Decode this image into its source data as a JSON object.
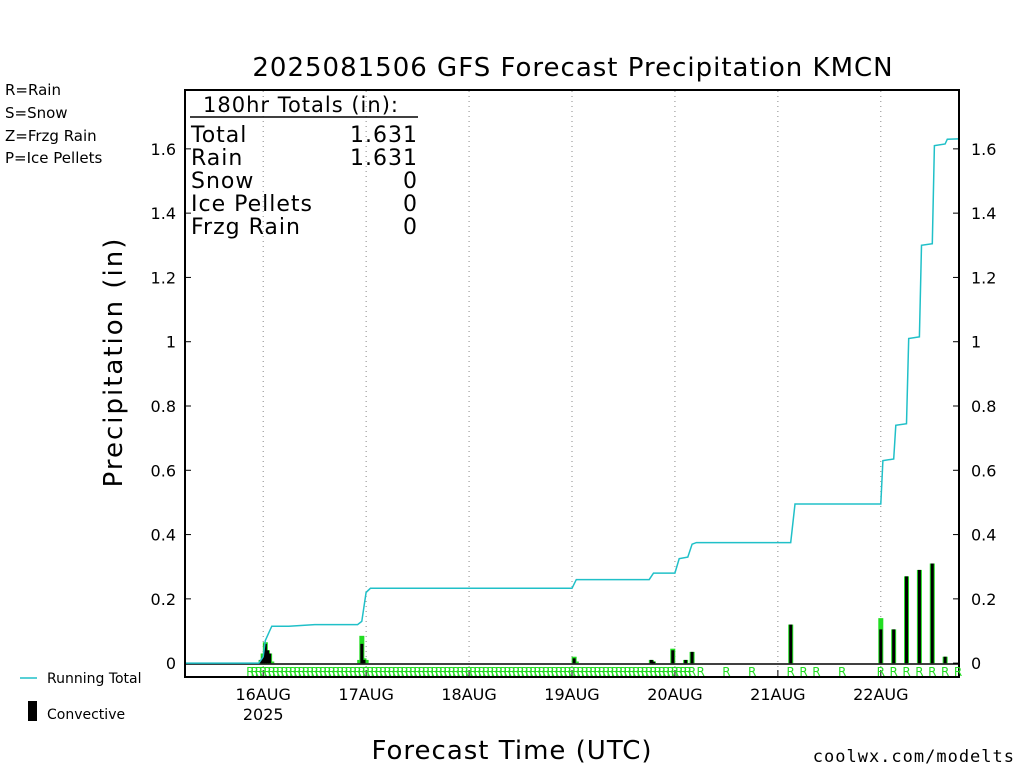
{
  "title": "2025081506 GFS Forecast Precipitation KMCN",
  "ylabel": "Precipitation (in)",
  "xlabel": "Forecast Time (UTC)",
  "source": "coolwx.com/modelts",
  "colors": {
    "running_total": "#20c0c8",
    "rain": "#22dd22",
    "snow": "#3050e0",
    "freezing_rain": "#f08a30",
    "ice_pellets": "#e0208a",
    "convective": "#000000"
  },
  "type_legend": [
    {
      "label": "R=Rain",
      "color": "#22dd22"
    },
    {
      "label": "S=Snow",
      "color": "#3050e0"
    },
    {
      "label": "Z=Frzg Rain",
      "color": "#f08a30"
    },
    {
      "label": "P=Ice Pellets",
      "color": "#e0208a"
    }
  ],
  "legend": {
    "running_total": "Running Total",
    "convective": "Convective"
  },
  "totals": {
    "header": "180hr Totals (in):",
    "rows": [
      {
        "label": "Total",
        "value": "1.631"
      },
      {
        "label": "Rain",
        "value": "1.631"
      },
      {
        "label": "Snow",
        "value": "0"
      },
      {
        "label": "Ice Pellets",
        "value": "0"
      },
      {
        "label": "Frzg Rain",
        "value": "0"
      }
    ]
  },
  "chart_data": {
    "type": "bar",
    "title": "2025081506 GFS Forecast Precipitation KMCN",
    "xlabel": "Forecast Time (UTC)",
    "ylabel": "Precipitation (in)",
    "x_unit": "forecast hours from 2025-08-15 06Z",
    "xlim": [
      0,
      180
    ],
    "ylim": [
      -0.04,
      1.78
    ],
    "y_ticks": [
      0,
      0.2,
      0.4,
      0.6,
      0.8,
      1,
      1.2,
      1.4,
      1.6
    ],
    "y_tick_labels": [
      "0",
      "0.2",
      "0.4",
      "0.6",
      "0.8",
      "1",
      "1.2",
      "1.4",
      "1.6"
    ],
    "x_ticks": [
      {
        "hour": 18,
        "label": "16AUG",
        "sub": "2025"
      },
      {
        "hour": 42,
        "label": "17AUG"
      },
      {
        "hour": 66,
        "label": "18AUG"
      },
      {
        "hour": 90,
        "label": "19AUG"
      },
      {
        "hour": 114,
        "label": "20AUG"
      },
      {
        "hour": 138,
        "label": "21AUG"
      },
      {
        "hour": 162,
        "label": "22AUG"
      }
    ],
    "grid": "vertical dotted at each day",
    "series": [
      {
        "name": "Running Total",
        "kind": "line",
        "points": [
          [
            0,
            0
          ],
          [
            17,
            0
          ],
          [
            18,
            0.02
          ],
          [
            18.5,
            0.07
          ],
          [
            19.5,
            0.1
          ],
          [
            20,
            0.115
          ],
          [
            24,
            0.115
          ],
          [
            30,
            0.12
          ],
          [
            40,
            0.12
          ],
          [
            41,
            0.13
          ],
          [
            42,
            0.22
          ],
          [
            43,
            0.233
          ],
          [
            90,
            0.233
          ],
          [
            91,
            0.26
          ],
          [
            108,
            0.26
          ],
          [
            109,
            0.28
          ],
          [
            114,
            0.28
          ],
          [
            115,
            0.325
          ],
          [
            117,
            0.33
          ],
          [
            118,
            0.37
          ],
          [
            119,
            0.375
          ],
          [
            141,
            0.375
          ],
          [
            142,
            0.495
          ],
          [
            162,
            0.495
          ],
          [
            162.5,
            0.63
          ],
          [
            165,
            0.635
          ],
          [
            165.5,
            0.74
          ],
          [
            168,
            0.745
          ],
          [
            168.5,
            1.01
          ],
          [
            171,
            1.015
          ],
          [
            171.5,
            1.3
          ],
          [
            174,
            1.305
          ],
          [
            174.5,
            1.61
          ],
          [
            177,
            1.615
          ],
          [
            177.5,
            1.63
          ],
          [
            180,
            1.631
          ]
        ]
      },
      {
        "name": "Rain",
        "kind": "bar",
        "bars": [
          [
            17.5,
            0.01
          ],
          [
            18,
            0.03
          ],
          [
            18.5,
            0.065
          ],
          [
            19,
            0.04
          ],
          [
            19.5,
            0.03
          ],
          [
            20,
            0.005
          ],
          [
            40.5,
            0.01
          ],
          [
            41,
            0.085
          ],
          [
            41.5,
            0.015
          ],
          [
            42,
            0.01
          ],
          [
            90.5,
            0.02
          ],
          [
            91,
            0.005
          ],
          [
            108.5,
            0.01
          ],
          [
            109,
            0.005
          ],
          [
            113.5,
            0.045
          ],
          [
            116.5,
            0.01
          ],
          [
            118,
            0.035
          ],
          [
            141,
            0.12
          ],
          [
            162,
            0.14
          ],
          [
            165,
            0.105
          ],
          [
            168,
            0.27
          ],
          [
            171,
            0.29
          ],
          [
            174,
            0.31
          ],
          [
            177,
            0.02
          ]
        ]
      },
      {
        "name": "Convective",
        "kind": "bar",
        "bars": [
          [
            17.5,
            0.01
          ],
          [
            18,
            0.02
          ],
          [
            18.5,
            0.06
          ],
          [
            19,
            0.04
          ],
          [
            19.5,
            0.03
          ],
          [
            41,
            0.06
          ],
          [
            41.5,
            0.01
          ],
          [
            90.5,
            0.015
          ],
          [
            108.5,
            0.01
          ],
          [
            109,
            0.005
          ],
          [
            113.5,
            0.04
          ],
          [
            116.5,
            0.01
          ],
          [
            118,
            0.035
          ],
          [
            141,
            0.12
          ],
          [
            162,
            0.105
          ],
          [
            165,
            0.105
          ],
          [
            168,
            0.27
          ],
          [
            171,
            0.29
          ],
          [
            174,
            0.31
          ],
          [
            177,
            0.02
          ]
        ]
      }
    ],
    "precip_type_markers": {
      "label": "R",
      "hours": [
        15,
        16,
        17,
        18,
        19,
        20,
        21,
        22,
        23,
        24,
        25,
        26,
        27,
        28,
        29,
        30,
        31,
        32,
        33,
        34,
        35,
        36,
        37,
        38,
        39,
        40,
        41,
        42,
        43,
        44,
        45,
        46,
        47,
        48,
        49,
        50,
        51,
        52,
        53,
        54,
        55,
        56,
        57,
        58,
        59,
        60,
        61,
        62,
        63,
        64,
        65,
        66,
        67,
        68,
        69,
        70,
        71,
        72,
        73,
        74,
        75,
        76,
        77,
        78,
        79,
        80,
        81,
        82,
        83,
        84,
        85,
        86,
        87,
        88,
        89,
        90,
        91,
        92,
        93,
        94,
        95,
        96,
        97,
        98,
        99,
        100,
        101,
        102,
        103,
        104,
        105,
        106,
        107,
        108,
        109,
        110,
        111,
        112,
        113,
        114,
        115,
        116,
        117,
        118,
        120,
        126,
        132,
        141,
        144,
        147,
        153,
        162,
        165,
        168,
        171,
        174,
        177,
        180
      ]
    }
  }
}
